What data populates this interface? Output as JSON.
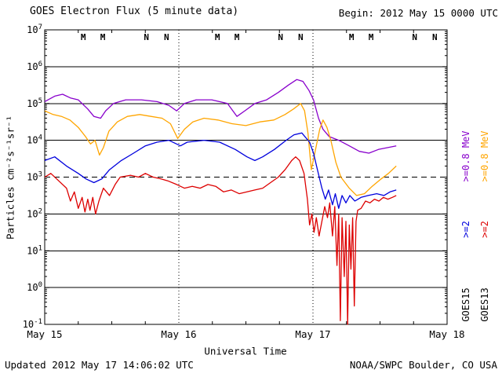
{
  "header": {
    "title": "GOES Electron Flux (5 minute data)",
    "begin_label": "Begin: 2012 May 15 0000 UTC"
  },
  "footer": {
    "updated": "Updated 2012 May 17 14:06:02 UTC",
    "source": "NOAA/SWPC Boulder, CO USA"
  },
  "axes": {
    "x_title": "Universal Time",
    "y_title": "Particles cm⁻²s⁻¹sr⁻¹",
    "y_tick_base": "10",
    "y_exponents": [
      7,
      6,
      5,
      4,
      3,
      2,
      1,
      0,
      -1
    ]
  },
  "legend": {
    "goes15": {
      "satellite": "GOES15",
      "e08": ">=0.8 MeV",
      "e2": ">=2"
    },
    "goes13": {
      "satellite": "GOES13",
      "e08": ">=0.8 MeV",
      "e2": ">=2"
    }
  },
  "chart_data": {
    "type": "line",
    "title": "GOES Electron Flux (5 minute data)",
    "xlabel": "Universal Time",
    "ylabel": "Particles cm-2 s-1 sr-1",
    "x_unit": "hours since 2012 May 15 0000 UTC",
    "xlim": [
      0,
      72
    ],
    "ylog": true,
    "ylim_log10": [
      -1,
      7
    ],
    "x_tick_hours": [
      0,
      24,
      48,
      72
    ],
    "x_tick_labels": [
      "May 15",
      "May 16",
      "May 17",
      "May 18"
    ],
    "day_boundaries_hours": [
      24,
      48
    ],
    "threshold_log10": 3,
    "grid": "solid horizontal decade lines, dashed alert line at 10^3, dotted vertical day boundaries",
    "legend_position": "right margin, rotated",
    "series": [
      {
        "name": "GOES15 >=0.8 MeV",
        "color": "#8800CC",
        "points_t_log10flux": [
          [
            0,
            5.05
          ],
          [
            1.8,
            5.2
          ],
          [
            3.2,
            5.25
          ],
          [
            4.6,
            5.15
          ],
          [
            6,
            5.1
          ],
          [
            7.7,
            4.85
          ],
          [
            8.8,
            4.65
          ],
          [
            10,
            4.6
          ],
          [
            10.9,
            4.8
          ],
          [
            12.3,
            5.0
          ],
          [
            14.5,
            5.1
          ],
          [
            17.3,
            5.1
          ],
          [
            20.1,
            5.05
          ],
          [
            22.2,
            4.95
          ],
          [
            23.6,
            4.8
          ],
          [
            25,
            5.0
          ],
          [
            27.1,
            5.1
          ],
          [
            29.9,
            5.1
          ],
          [
            32.7,
            5.0
          ],
          [
            34.4,
            4.65
          ],
          [
            35.8,
            4.8
          ],
          [
            37.6,
            5.0
          ],
          [
            39.7,
            5.1
          ],
          [
            41.8,
            5.3
          ],
          [
            43.6,
            5.5
          ],
          [
            45.1,
            5.65
          ],
          [
            46.2,
            5.6
          ],
          [
            47.3,
            5.35
          ],
          [
            48.1,
            5.1
          ],
          [
            49,
            4.6
          ],
          [
            49.8,
            4.3
          ],
          [
            50.9,
            4.1
          ],
          [
            52.6,
            4.0
          ],
          [
            54.5,
            3.85
          ],
          [
            56.3,
            3.7
          ],
          [
            58,
            3.65
          ],
          [
            59.7,
            3.75
          ],
          [
            61.3,
            3.8
          ],
          [
            62.9,
            3.85
          ]
        ]
      },
      {
        "name": "GOES13 >=0.8 MeV",
        "color": "#FFA500",
        "points_t_log10flux": [
          [
            0,
            4.8
          ],
          [
            1.5,
            4.7
          ],
          [
            3,
            4.65
          ],
          [
            4.5,
            4.55
          ],
          [
            6,
            4.35
          ],
          [
            7.3,
            4.1
          ],
          [
            8.2,
            3.9
          ],
          [
            9,
            4.0
          ],
          [
            9.8,
            3.6
          ],
          [
            10.5,
            3.8
          ],
          [
            11.5,
            4.25
          ],
          [
            13,
            4.5
          ],
          [
            14.8,
            4.65
          ],
          [
            17,
            4.7
          ],
          [
            19,
            4.65
          ],
          [
            21,
            4.6
          ],
          [
            22.5,
            4.45
          ],
          [
            23.8,
            4.05
          ],
          [
            25,
            4.3
          ],
          [
            26.5,
            4.5
          ],
          [
            28.5,
            4.6
          ],
          [
            31,
            4.55
          ],
          [
            33.5,
            4.45
          ],
          [
            36,
            4.4
          ],
          [
            38.5,
            4.5
          ],
          [
            41,
            4.55
          ],
          [
            43,
            4.7
          ],
          [
            44.5,
            4.85
          ],
          [
            45.8,
            5.0
          ],
          [
            46.5,
            4.8
          ],
          [
            47.1,
            4.2
          ],
          [
            47.7,
            3.2
          ],
          [
            48.4,
            3.7
          ],
          [
            49.2,
            4.3
          ],
          [
            49.8,
            4.55
          ],
          [
            50.5,
            4.35
          ],
          [
            51.2,
            4.0
          ],
          [
            52.1,
            3.4
          ],
          [
            53,
            3.0
          ],
          [
            54.5,
            2.7
          ],
          [
            55.8,
            2.5
          ],
          [
            57.2,
            2.55
          ],
          [
            58.6,
            2.75
          ],
          [
            60.2,
            2.95
          ],
          [
            61.5,
            3.1
          ],
          [
            62.9,
            3.3
          ]
        ]
      },
      {
        "name": "GOES15 >=2 MeV",
        "color": "#0000DD",
        "points_t_log10flux": [
          [
            0,
            3.45
          ],
          [
            1.8,
            3.55
          ],
          [
            3.9,
            3.3
          ],
          [
            6,
            3.1
          ],
          [
            7.4,
            2.95
          ],
          [
            8.8,
            2.85
          ],
          [
            10.2,
            2.95
          ],
          [
            11.6,
            3.2
          ],
          [
            13.7,
            3.45
          ],
          [
            15.9,
            3.65
          ],
          [
            18,
            3.85
          ],
          [
            20.1,
            3.95
          ],
          [
            22.2,
            4.0
          ],
          [
            24.3,
            3.85
          ],
          [
            25.5,
            3.95
          ],
          [
            28.5,
            4.0
          ],
          [
            31.3,
            3.95
          ],
          [
            34.1,
            3.75
          ],
          [
            36.2,
            3.55
          ],
          [
            37.6,
            3.45
          ],
          [
            39,
            3.55
          ],
          [
            41.1,
            3.75
          ],
          [
            43.2,
            4.0
          ],
          [
            44.6,
            4.15
          ],
          [
            46,
            4.2
          ],
          [
            47.4,
            3.95
          ],
          [
            48.1,
            3.65
          ],
          [
            48.8,
            3.2
          ],
          [
            49.6,
            2.7
          ],
          [
            50.2,
            2.4
          ],
          [
            50.8,
            2.65
          ],
          [
            51.5,
            2.25
          ],
          [
            52,
            2.55
          ],
          [
            52.6,
            2.15
          ],
          [
            53.2,
            2.5
          ],
          [
            53.9,
            2.3
          ],
          [
            54.6,
            2.5
          ],
          [
            55.5,
            2.35
          ],
          [
            56.6,
            2.45
          ],
          [
            57.9,
            2.5
          ],
          [
            59.4,
            2.55
          ],
          [
            60.7,
            2.5
          ],
          [
            61.8,
            2.6
          ],
          [
            62.9,
            2.65
          ]
        ]
      },
      {
        "name": "GOES13 >=2 MeV",
        "color": "#DD0000",
        "points_t_log10flux": [
          [
            0,
            3.0
          ],
          [
            1.1,
            3.1
          ],
          [
            2.5,
            2.9
          ],
          [
            3.9,
            2.7
          ],
          [
            4.6,
            2.35
          ],
          [
            5.3,
            2.6
          ],
          [
            6,
            2.15
          ],
          [
            6.7,
            2.45
          ],
          [
            7.2,
            2.05
          ],
          [
            7.7,
            2.4
          ],
          [
            8.1,
            2.1
          ],
          [
            8.6,
            2.45
          ],
          [
            9.1,
            2.0
          ],
          [
            9.7,
            2.35
          ],
          [
            10.5,
            2.7
          ],
          [
            11.6,
            2.5
          ],
          [
            12.6,
            2.8
          ],
          [
            13.5,
            3.0
          ],
          [
            15.4,
            3.05
          ],
          [
            16.8,
            3.0
          ],
          [
            18,
            3.1
          ],
          [
            19.4,
            3.0
          ],
          [
            20.8,
            2.95
          ],
          [
            22,
            2.9
          ],
          [
            23.6,
            2.8
          ],
          [
            25,
            2.7
          ],
          [
            26.4,
            2.75
          ],
          [
            27.8,
            2.7
          ],
          [
            29.2,
            2.8
          ],
          [
            30.6,
            2.75
          ],
          [
            32,
            2.6
          ],
          [
            33.4,
            2.65
          ],
          [
            34.8,
            2.55
          ],
          [
            36.2,
            2.6
          ],
          [
            37.6,
            2.65
          ],
          [
            39,
            2.7
          ],
          [
            40.4,
            2.85
          ],
          [
            41.8,
            3.0
          ],
          [
            43,
            3.2
          ],
          [
            44.2,
            3.45
          ],
          [
            44.9,
            3.55
          ],
          [
            45.6,
            3.45
          ],
          [
            46.4,
            3.1
          ],
          [
            47,
            2.4
          ],
          [
            47.4,
            1.7
          ],
          [
            47.8,
            2.0
          ],
          [
            48.2,
            1.5
          ],
          [
            48.6,
            1.9
          ],
          [
            49.1,
            1.4
          ],
          [
            49.6,
            1.8
          ],
          [
            50.1,
            2.2
          ],
          [
            50.6,
            1.9
          ],
          [
            51,
            2.3
          ],
          [
            51.5,
            1.4
          ],
          [
            51.9,
            2.2
          ],
          [
            52.3,
            0.6
          ],
          [
            52.6,
            2.0
          ],
          [
            52.9,
            -0.9
          ],
          [
            53.2,
            1.9
          ],
          [
            53.6,
            0.3
          ],
          [
            53.9,
            1.8
          ],
          [
            54.2,
            -1.0
          ],
          [
            54.5,
            1.7
          ],
          [
            54.8,
            0.5
          ],
          [
            55.1,
            1.9
          ],
          [
            55.4,
            -0.5
          ],
          [
            55.7,
            1.8
          ],
          [
            56,
            2.1
          ],
          [
            56.6,
            2.15
          ],
          [
            57.4,
            2.35
          ],
          [
            58.2,
            2.3
          ],
          [
            59,
            2.4
          ],
          [
            59.8,
            2.35
          ],
          [
            60.6,
            2.45
          ],
          [
            61.4,
            2.4
          ],
          [
            62.2,
            2.45
          ],
          [
            62.9,
            2.5
          ]
        ]
      }
    ],
    "noon_midnight_markers": [
      {
        "t": 6.9,
        "label": "M",
        "color": "#DD0000"
      },
      {
        "t": 10.4,
        "label": "M",
        "color": "#0000DD"
      },
      {
        "t": 18.2,
        "label": "N",
        "color": "#DD0000"
      },
      {
        "t": 21.8,
        "label": "N",
        "color": "#0000DD"
      },
      {
        "t": 30.9,
        "label": "M",
        "color": "#DD0000"
      },
      {
        "t": 34.4,
        "label": "M",
        "color": "#0000DD"
      },
      {
        "t": 42.2,
        "label": "N",
        "color": "#DD0000"
      },
      {
        "t": 45.8,
        "label": "N",
        "color": "#0000DD"
      },
      {
        "t": 54.9,
        "label": "M",
        "color": "#DD0000"
      },
      {
        "t": 58.4,
        "label": "M",
        "color": "#0000DD"
      },
      {
        "t": 66.2,
        "label": "N",
        "color": "#DD0000"
      },
      {
        "t": 69.8,
        "label": "N",
        "color": "#0000DD"
      }
    ]
  }
}
